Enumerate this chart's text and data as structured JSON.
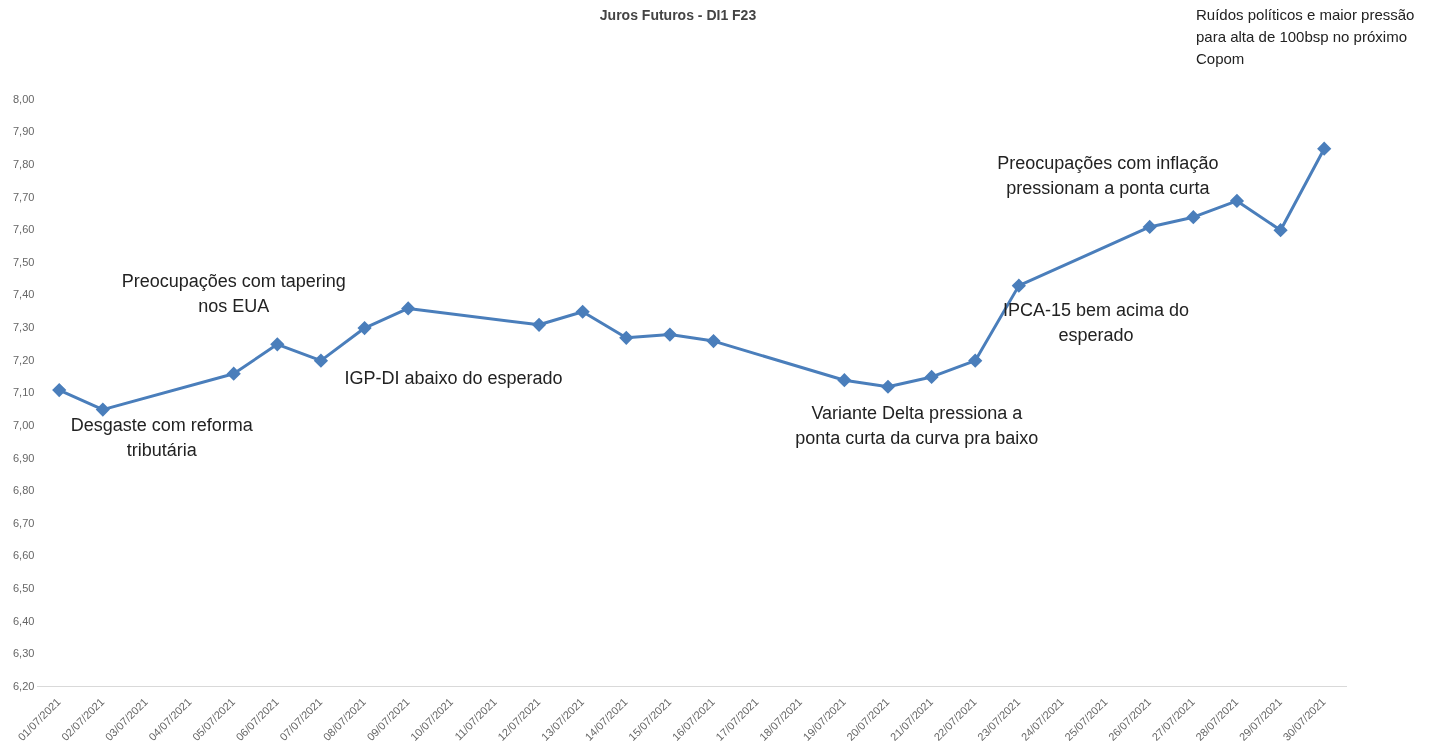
{
  "chart_data": {
    "type": "line",
    "title": "Juros Futuros - DI1 F23",
    "categories": [
      "01/07/2021",
      "02/07/2021",
      "03/07/2021",
      "04/07/2021",
      "05/07/2021",
      "06/07/2021",
      "07/07/2021",
      "08/07/2021",
      "09/07/2021",
      "10/07/2021",
      "11/07/2021",
      "12/07/2021",
      "13/07/2021",
      "14/07/2021",
      "15/07/2021",
      "16/07/2021",
      "17/07/2021",
      "18/07/2021",
      "19/07/2021",
      "20/07/2021",
      "21/07/2021",
      "22/07/2021",
      "23/07/2021",
      "24/07/2021",
      "25/07/2021",
      "26/07/2021",
      "27/07/2021",
      "28/07/2021",
      "29/07/2021",
      "30/07/2021"
    ],
    "series": [
      {
        "color": "#4a7ebb",
        "values": [
          7.11,
          7.05,
          null,
          null,
          7.16,
          7.25,
          7.2,
          7.3,
          7.36,
          null,
          null,
          7.31,
          7.35,
          7.27,
          7.28,
          7.26,
          null,
          null,
          7.14,
          7.12,
          7.15,
          7.2,
          7.43,
          null,
          null,
          7.61,
          7.64,
          7.69,
          7.6,
          7.85
        ]
      }
    ],
    "ylim": [
      6.2,
      8.0
    ],
    "yticks": [
      {
        "value": 6.2,
        "label": "6,20"
      },
      {
        "value": 6.3,
        "label": "6,30"
      },
      {
        "value": 6.4,
        "label": "6,40"
      },
      {
        "value": 6.5,
        "label": "6,50"
      },
      {
        "value": 6.6,
        "label": "6,60"
      },
      {
        "value": 6.7,
        "label": "6,70"
      },
      {
        "value": 6.8,
        "label": "6,80"
      },
      {
        "value": 6.9,
        "label": "6,90"
      },
      {
        "value": 7.0,
        "label": "7,00"
      },
      {
        "value": 7.1,
        "label": "7,10"
      },
      {
        "value": 7.2,
        "label": "7,20"
      },
      {
        "value": 7.3,
        "label": "7,30"
      },
      {
        "value": 7.4,
        "label": "7,40"
      },
      {
        "value": 7.5,
        "label": "7,50"
      },
      {
        "value": 7.6,
        "label": "7,60"
      },
      {
        "value": 7.7,
        "label": "7,70"
      },
      {
        "value": 7.8,
        "label": "7,80"
      },
      {
        "value": 7.9,
        "label": "7,90"
      },
      {
        "value": 8.0,
        "label": "8,00"
      }
    ],
    "annotations": [
      "Desgaste com reforma\ntributária",
      "Preocupações com tapering\nnos EUA",
      "IGP-DI abaixo do esperado",
      "Variante Delta pressiona a\nponta curta da curva pra baixo",
      "IPCA-15 bem acima do\nesperado",
      "Preocupações com inflação\npressionam a ponta curta",
      "Ruídos políticos e maior pressão\npara alta de 100bsp no próximo\nCopom"
    ],
    "grid": false,
    "legend": false,
    "marker": "diamond",
    "line_style": "solid"
  }
}
